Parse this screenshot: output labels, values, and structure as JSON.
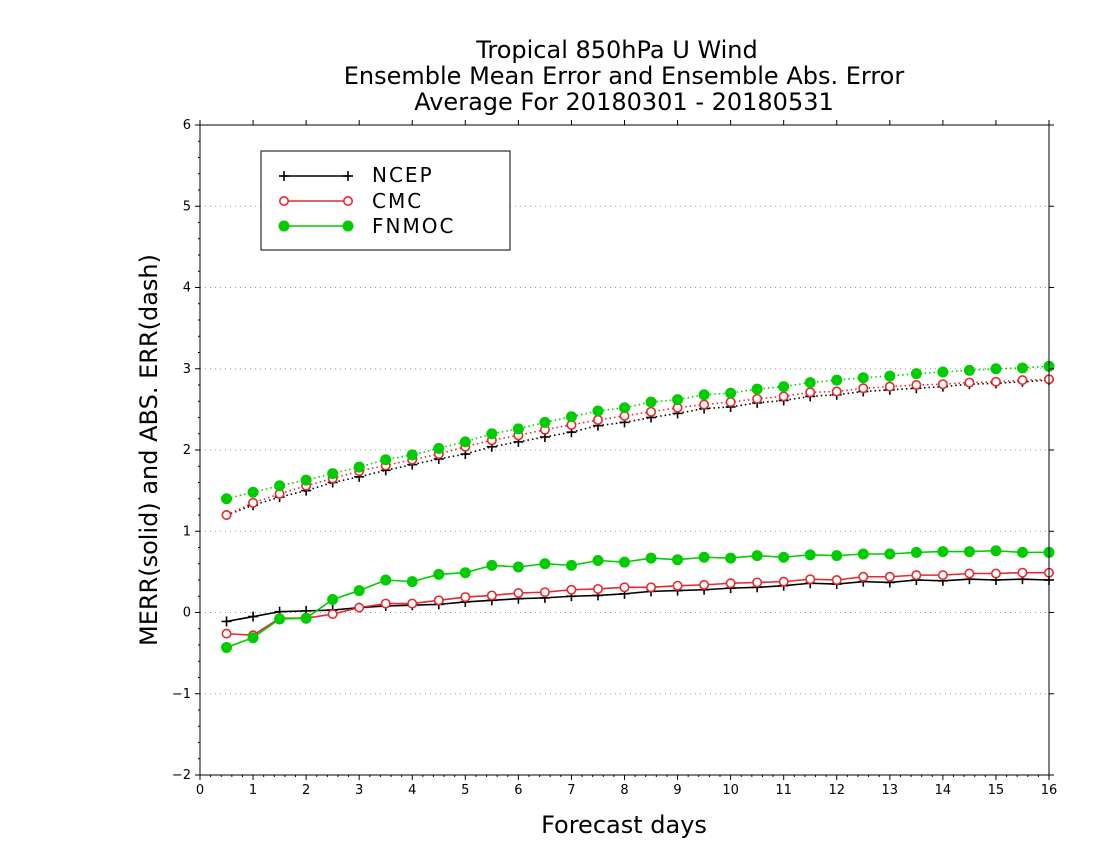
{
  "chart_data": {
    "type": "line",
    "title": [
      "Tropical 850hPa U Wind",
      "Ensemble Mean Error and Ensemble Abs. Error",
      "Average For 20180301 - 20180531"
    ],
    "xlabel": "Forecast days",
    "ylabel": "MERR(solid) and ABS. ERR(dash)",
    "xlim": [
      0,
      16
    ],
    "ylim": [
      -2,
      6
    ],
    "xticks": [
      "0",
      "1",
      "2",
      "3",
      "4",
      "5",
      "6",
      "7",
      "8",
      "9",
      "10",
      "11",
      "12",
      "13",
      "14",
      "15",
      "16"
    ],
    "yticks": [
      "−2",
      "−1",
      "0",
      "1",
      "2",
      "3",
      "4",
      "5",
      "6"
    ],
    "grid": "horizontal dotted",
    "legend_position": "top-left",
    "x": [
      0.5,
      1,
      1.5,
      2,
      2.5,
      3,
      3.5,
      4,
      4.5,
      5,
      5.5,
      6,
      6.5,
      7,
      7.5,
      8,
      8.5,
      9,
      9.5,
      10,
      10.5,
      11,
      11.5,
      12,
      12.5,
      13,
      13.5,
      14,
      14.5,
      15,
      15.5,
      16
    ],
    "series": [
      {
        "name": "NCEP",
        "color": "#000000",
        "marker": "plus",
        "merr": [
          -0.11,
          -0.05,
          0.01,
          0.02,
          0.03,
          0.06,
          0.08,
          0.09,
          0.1,
          0.13,
          0.15,
          0.17,
          0.18,
          0.2,
          0.21,
          0.23,
          0.26,
          0.27,
          0.28,
          0.3,
          0.31,
          0.33,
          0.36,
          0.35,
          0.38,
          0.37,
          0.4,
          0.39,
          0.41,
          0.4,
          0.41,
          0.4
        ],
        "abs_err": [
          1.2,
          1.32,
          1.42,
          1.5,
          1.6,
          1.67,
          1.75,
          1.82,
          1.89,
          1.95,
          2.04,
          2.1,
          2.16,
          2.22,
          2.3,
          2.34,
          2.4,
          2.45,
          2.51,
          2.53,
          2.58,
          2.61,
          2.66,
          2.68,
          2.72,
          2.74,
          2.76,
          2.78,
          2.81,
          2.82,
          2.84,
          2.86
        ]
      },
      {
        "name": "CMC",
        "color": "#e8282c",
        "marker": "open-circle",
        "merr": [
          -0.26,
          -0.28,
          -0.07,
          -0.07,
          -0.02,
          0.06,
          0.11,
          0.11,
          0.15,
          0.19,
          0.21,
          0.24,
          0.25,
          0.28,
          0.29,
          0.31,
          0.31,
          0.33,
          0.34,
          0.36,
          0.37,
          0.38,
          0.41,
          0.4,
          0.44,
          0.44,
          0.46,
          0.46,
          0.48,
          0.48,
          0.49,
          0.49
        ],
        "abs_err": [
          1.2,
          1.35,
          1.46,
          1.56,
          1.65,
          1.74,
          1.81,
          1.88,
          1.95,
          2.04,
          2.12,
          2.18,
          2.25,
          2.31,
          2.37,
          2.42,
          2.47,
          2.52,
          2.56,
          2.59,
          2.63,
          2.66,
          2.71,
          2.72,
          2.76,
          2.78,
          2.8,
          2.81,
          2.83,
          2.84,
          2.86,
          2.87
        ]
      },
      {
        "name": "FNMOC",
        "color": "#00cc00",
        "marker": "filled-circle",
        "merr": [
          -0.43,
          -0.31,
          -0.08,
          -0.07,
          0.16,
          0.27,
          0.4,
          0.38,
          0.47,
          0.49,
          0.58,
          0.56,
          0.6,
          0.58,
          0.64,
          0.62,
          0.67,
          0.65,
          0.68,
          0.67,
          0.7,
          0.68,
          0.71,
          0.7,
          0.72,
          0.72,
          0.74,
          0.75,
          0.75,
          0.76,
          0.74,
          0.74
        ],
        "abs_err": [
          1.4,
          1.48,
          1.56,
          1.63,
          1.71,
          1.79,
          1.88,
          1.94,
          2.02,
          2.1,
          2.2,
          2.26,
          2.34,
          2.41,
          2.48,
          2.52,
          2.59,
          2.62,
          2.68,
          2.7,
          2.75,
          2.78,
          2.83,
          2.86,
          2.89,
          2.91,
          2.94,
          2.96,
          2.98,
          3.0,
          3.01,
          3.03
        ]
      }
    ]
  }
}
